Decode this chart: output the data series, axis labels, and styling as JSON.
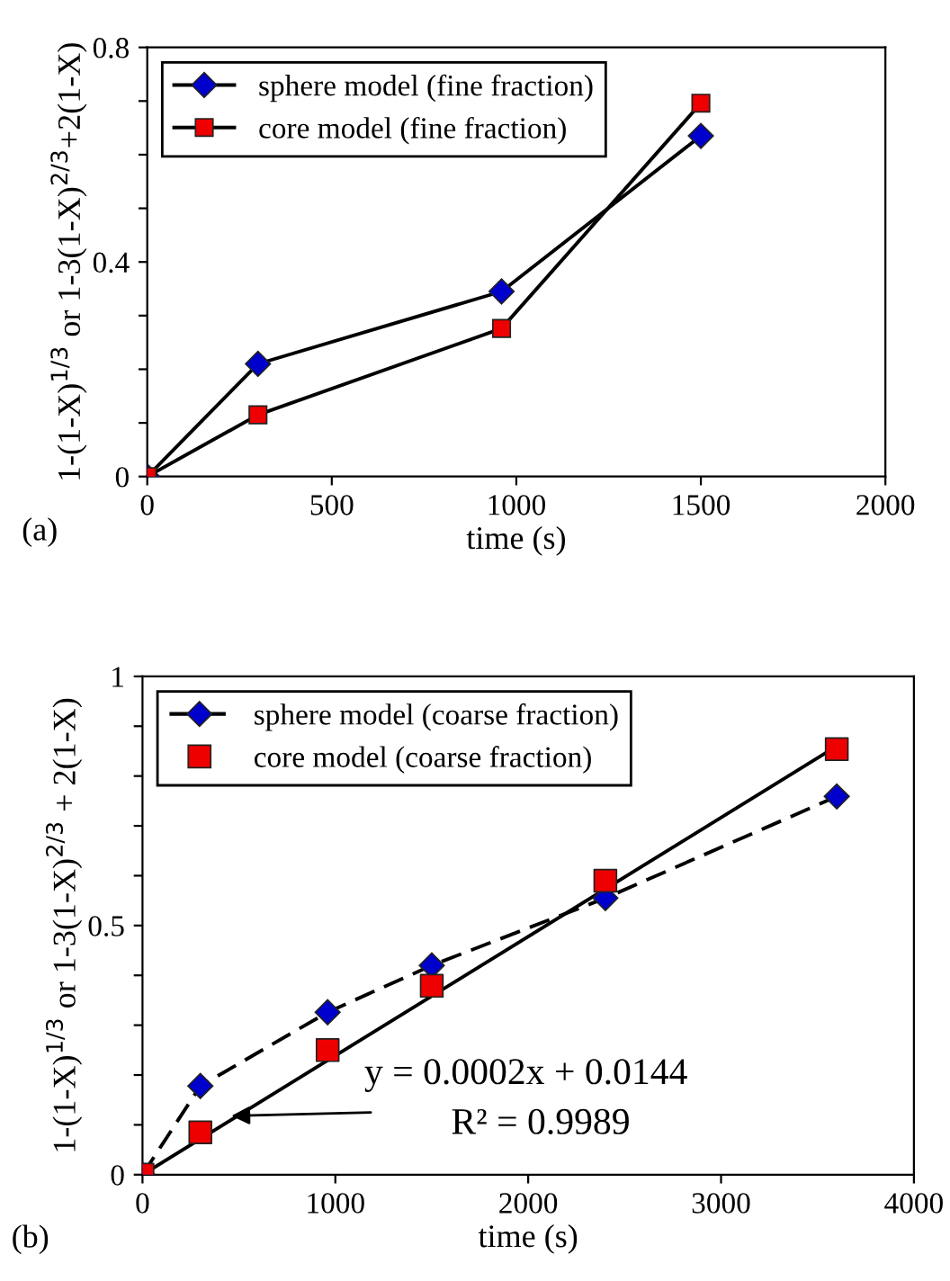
{
  "chart_data": [
    {
      "type": "line",
      "xlabel": "time (s)",
      "ylabel": "1-(1-X)$^{1/3}$ or 1-3(1-X)$^{2/3}$+2(1-X)",
      "xlim": [
        0,
        2000
      ],
      "xticks": [
        0,
        500,
        1000,
        1500,
        2000
      ],
      "ylim": [
        0,
        0.8
      ],
      "yticks": [
        0,
        {
          "value": 0.1,
          "label": null
        },
        {
          "value": 0.2,
          "label": null
        },
        {
          "value": 0.3,
          "label": null
        },
        0.4,
        {
          "value": 0.5,
          "label": null
        },
        {
          "value": 0.6,
          "label": null
        },
        {
          "value": 0.7,
          "label": null
        },
        0.8
      ],
      "legend": "top left",
      "grid": false,
      "annotations": [
        "(a)"
      ],
      "series": [
        {
          "name": "sphere model (fine fraction)",
          "color": "#0000cc",
          "marker": "diamond",
          "line_style": "solid",
          "x": [
            0,
            300,
            960,
            1500
          ],
          "values": [
            0,
            0.21,
            0.345,
            0.635
          ]
        },
        {
          "name": "core model (fine fraction)",
          "color": "#ee0000",
          "marker": "square",
          "line_style": "solid",
          "x": [
            0,
            300,
            960,
            1500
          ],
          "values": [
            0,
            0.115,
            0.276,
            0.696
          ]
        }
      ]
    },
    {
      "type": "line",
      "xlabel": "time (s)",
      "ylabel": "1-(1-X)$^{1/3}$ or 1-3(1-X)$^{2/3}$ + 2(1-X)",
      "xlim": [
        0,
        4000
      ],
      "xticks": [
        0,
        1000,
        2000,
        3000,
        4000
      ],
      "ylim": [
        0,
        1
      ],
      "yticks": [
        0,
        {
          "value": 0.1,
          "label": null
        },
        {
          "value": 0.2,
          "label": null
        },
        {
          "value": 0.3,
          "label": null
        },
        {
          "value": 0.4,
          "label": null
        },
        0.5,
        {
          "value": 0.6,
          "label": null
        },
        {
          "value": 0.7,
          "label": null
        },
        {
          "value": 0.8,
          "label": null
        },
        {
          "value": 0.9,
          "label": null
        },
        1
      ],
      "legend": "top left",
      "grid": false,
      "annotations": [
        {
          "text": "y = 0.0002x + 0.0144",
          "x": 460,
          "y": 0.118
        },
        "R² = 0.9989",
        "(b)"
      ],
      "series": [
        {
          "name": "sphere model (coarse fraction)",
          "color": "#0000cc",
          "marker": "diamond",
          "line_style": "dashed",
          "x": [
            0,
            300,
            960,
            1500,
            2400,
            3600
          ],
          "values": [
            0,
            0.178,
            0.326,
            0.42,
            0.555,
            0.759
          ]
        },
        {
          "name": "core model (coarse fraction)",
          "type": "scatter",
          "color": "#ee0000",
          "marker": "square",
          "x": [
            0,
            300,
            960,
            1500,
            2400,
            3600
          ],
          "values": [
            0,
            0.085,
            0.25,
            0.379,
            0.59,
            0.854
          ]
        },
        {
          "color": "#000000",
          "marker": "none",
          "line_style": "solid",
          "x": [
            0,
            3600
          ],
          "values": [
            0,
            0.86
          ]
        }
      ]
    }
  ]
}
